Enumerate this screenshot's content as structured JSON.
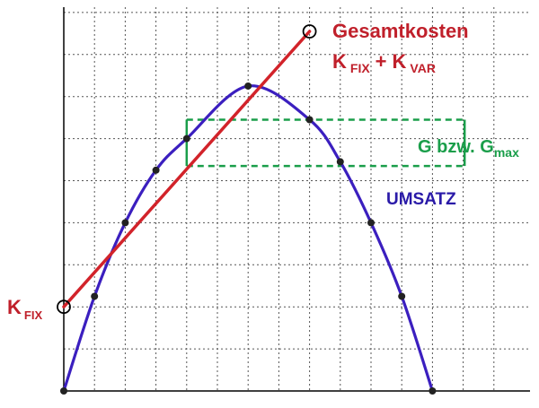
{
  "chart_data": {
    "type": "line",
    "xlim": [
      0,
      12
    ],
    "ylim": [
      0,
      9.5
    ],
    "grid": true,
    "grid_style": "dotted",
    "series": [
      {
        "name": "UMSATZ",
        "color": "#3b1fbf",
        "points": [
          [
            0,
            0
          ],
          [
            1,
            2.25
          ],
          [
            2,
            4
          ],
          [
            3,
            5.25
          ],
          [
            4,
            6
          ],
          [
            6,
            7.25
          ],
          [
            8,
            6.45
          ],
          [
            9,
            5.45
          ],
          [
            10,
            4
          ],
          [
            11,
            2.25
          ],
          [
            12,
            0
          ]
        ]
      },
      {
        "name": "Gesamtkosten",
        "color": "#d2232a",
        "points": [
          [
            0,
            2
          ],
          [
            8,
            8.55
          ]
        ]
      }
    ],
    "annotations": {
      "cost_title": "Gesamtkosten",
      "cost_formula": {
        "k1": "K",
        "s1": "FIX",
        "plus": "+",
        "k2": "K",
        "s2": "VAR"
      },
      "kfix": {
        "k": "K",
        "sub": "FIX"
      },
      "profit": {
        "text": "G bzw. G",
        "sub": "max",
        "color": "#1a9e4a",
        "x_from": 4,
        "x_to": 11,
        "y_top": 6.45,
        "y_bottom": 5.35
      },
      "umsatz": "UMSATZ"
    }
  }
}
